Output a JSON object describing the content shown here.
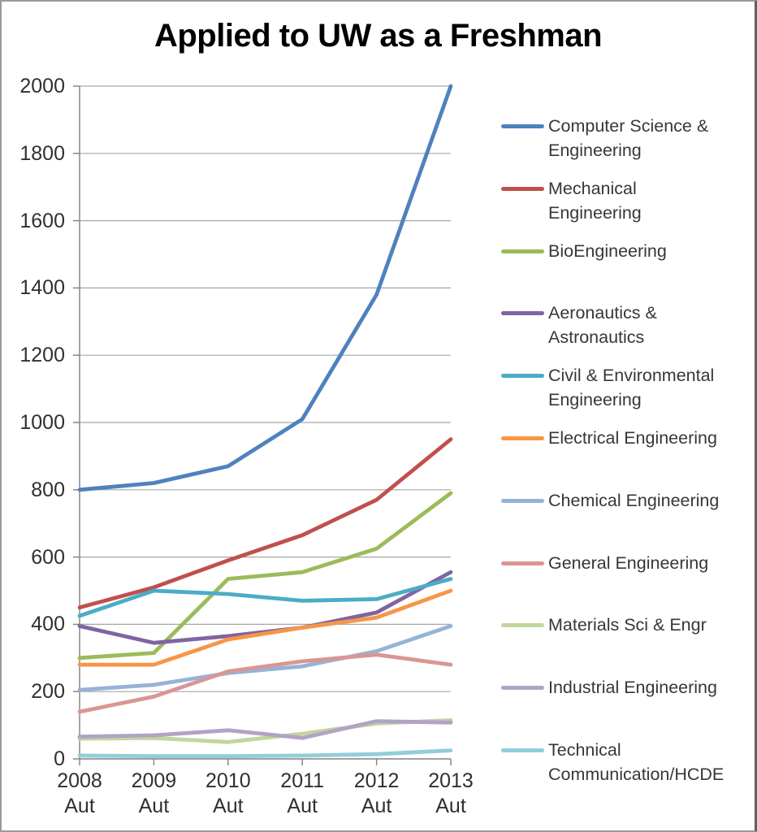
{
  "chart_data": {
    "type": "line",
    "title": "Applied to UW as a Freshman",
    "xlabel": "",
    "ylabel": "",
    "ylim": [
      0,
      2000
    ],
    "yticks": [
      0,
      200,
      400,
      600,
      800,
      1000,
      1200,
      1400,
      1600,
      1800,
      2000
    ],
    "grid": true,
    "legend_position": "right",
    "categories": [
      {
        "year": "2008",
        "term": "Aut"
      },
      {
        "year": "2009",
        "term": "Aut"
      },
      {
        "year": "2010",
        "term": "Aut"
      },
      {
        "year": "2011",
        "term": "Aut"
      },
      {
        "year": "2012",
        "term": "Aut"
      },
      {
        "year": "2013",
        "term": "Aut"
      }
    ],
    "series": [
      {
        "name": "Computer Science & Engineering",
        "color": "#4F81BD",
        "legend_lines": [
          "Computer Science &",
          "Engineering"
        ],
        "values": [
          800,
          820,
          870,
          1010,
          1380,
          2000
        ]
      },
      {
        "name": "Mechanical Engineering",
        "color": "#C0504D",
        "legend_lines": [
          "Mechanical",
          "Engineering"
        ],
        "values": [
          450,
          510,
          590,
          665,
          770,
          950
        ]
      },
      {
        "name": "BioEngineering",
        "color": "#9BBB59",
        "legend_lines": [
          "BioEngineering"
        ],
        "values": [
          300,
          315,
          535,
          555,
          625,
          790
        ]
      },
      {
        "name": "Aeronautics & Astronautics",
        "color": "#8064A2",
        "legend_lines": [
          "Aeronautics &",
          "Astronautics"
        ],
        "values": [
          395,
          345,
          365,
          390,
          435,
          555
        ]
      },
      {
        "name": "Civil & Environmental Engineering",
        "color": "#4BACC6",
        "legend_lines": [
          "Civil & Environmental",
          "Engineering"
        ],
        "values": [
          425,
          500,
          490,
          470,
          475,
          535
        ]
      },
      {
        "name": "Electrical Engineering",
        "color": "#F79646",
        "legend_lines": [
          "Electrical Engineering"
        ],
        "values": [
          280,
          280,
          355,
          390,
          420,
          500
        ]
      },
      {
        "name": "Chemical Engineering",
        "color": "#95B3D7",
        "legend_lines": [
          "Chemical Engineering"
        ],
        "values": [
          205,
          220,
          255,
          275,
          320,
          395
        ]
      },
      {
        "name": "General Engineering",
        "color": "#D99694",
        "legend_lines": [
          "General Engineering"
        ],
        "values": [
          140,
          185,
          260,
          290,
          310,
          280
        ]
      },
      {
        "name": "Materials Sci & Engr",
        "color": "#C3D69B",
        "legend_lines": [
          "Materials Sci & Engr"
        ],
        "values": [
          60,
          62,
          50,
          75,
          105,
          115
        ]
      },
      {
        "name": "Industrial Engineering",
        "color": "#B2A2C7",
        "legend_lines": [
          "Industrial Engineering"
        ],
        "values": [
          66,
          70,
          85,
          62,
          112,
          108
        ]
      },
      {
        "name": "Technical Communication/HCDE",
        "color": "#92CDDC",
        "legend_lines": [
          "Technical",
          "Communication/HCDE"
        ],
        "values": [
          10,
          8,
          8,
          10,
          14,
          25
        ]
      }
    ]
  }
}
